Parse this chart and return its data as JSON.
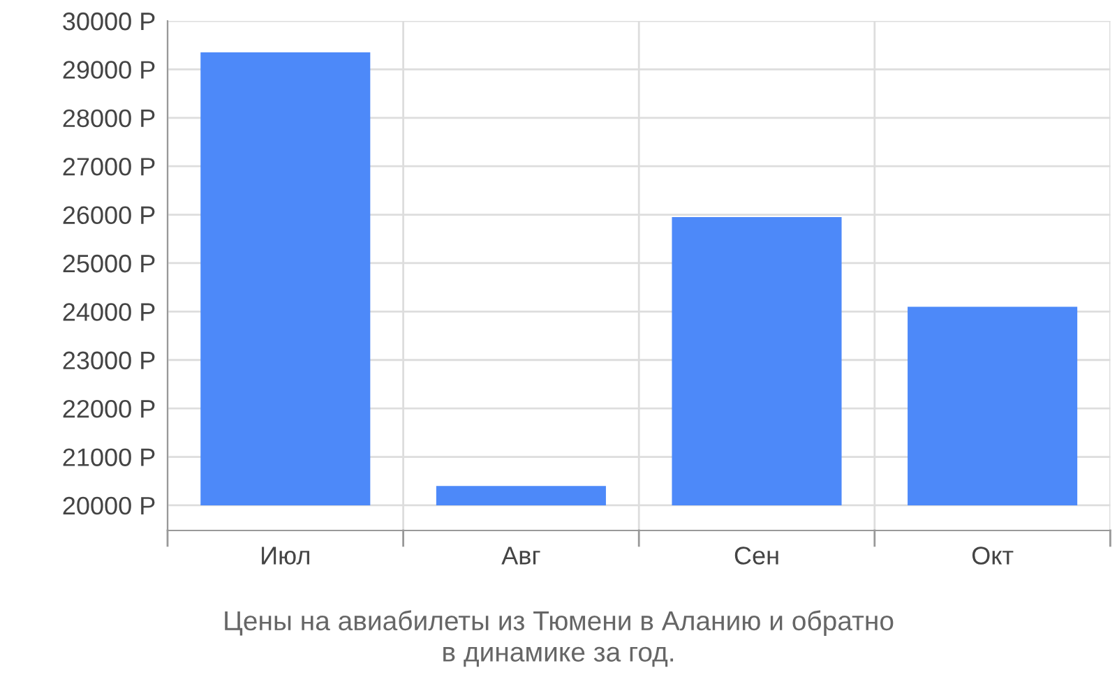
{
  "chart_data": {
    "type": "bar",
    "categories": [
      "Июл",
      "Авг",
      "Сен",
      "Окт"
    ],
    "base": [
      20000,
      20000,
      20000,
      20000
    ],
    "values": [
      9350,
      400,
      5950,
      4100
    ],
    "color": "#4d89f9",
    "ylim": [
      19480,
      30000
    ],
    "yticks": [
      {
        "value": 20000,
        "label": "20000 Р"
      },
      {
        "value": 21000,
        "label": "21000 Р"
      },
      {
        "value": 22000,
        "label": "22000 Р"
      },
      {
        "value": 23000,
        "label": "23000 Р"
      },
      {
        "value": 24000,
        "label": "24000 Р"
      },
      {
        "value": 25000,
        "label": "25000 Р"
      },
      {
        "value": 26000,
        "label": "26000 Р"
      },
      {
        "value": 27000,
        "label": "27000 Р"
      },
      {
        "value": 28000,
        "label": "28000 Р"
      },
      {
        "value": 29000,
        "label": "29000 Р"
      },
      {
        "value": 30000,
        "label": "30000 Р"
      }
    ],
    "grid": true,
    "annotations": [
      "Цены на авиабилеты из Тюмени в Аланию и обратно\nв динамике за год."
    ]
  }
}
